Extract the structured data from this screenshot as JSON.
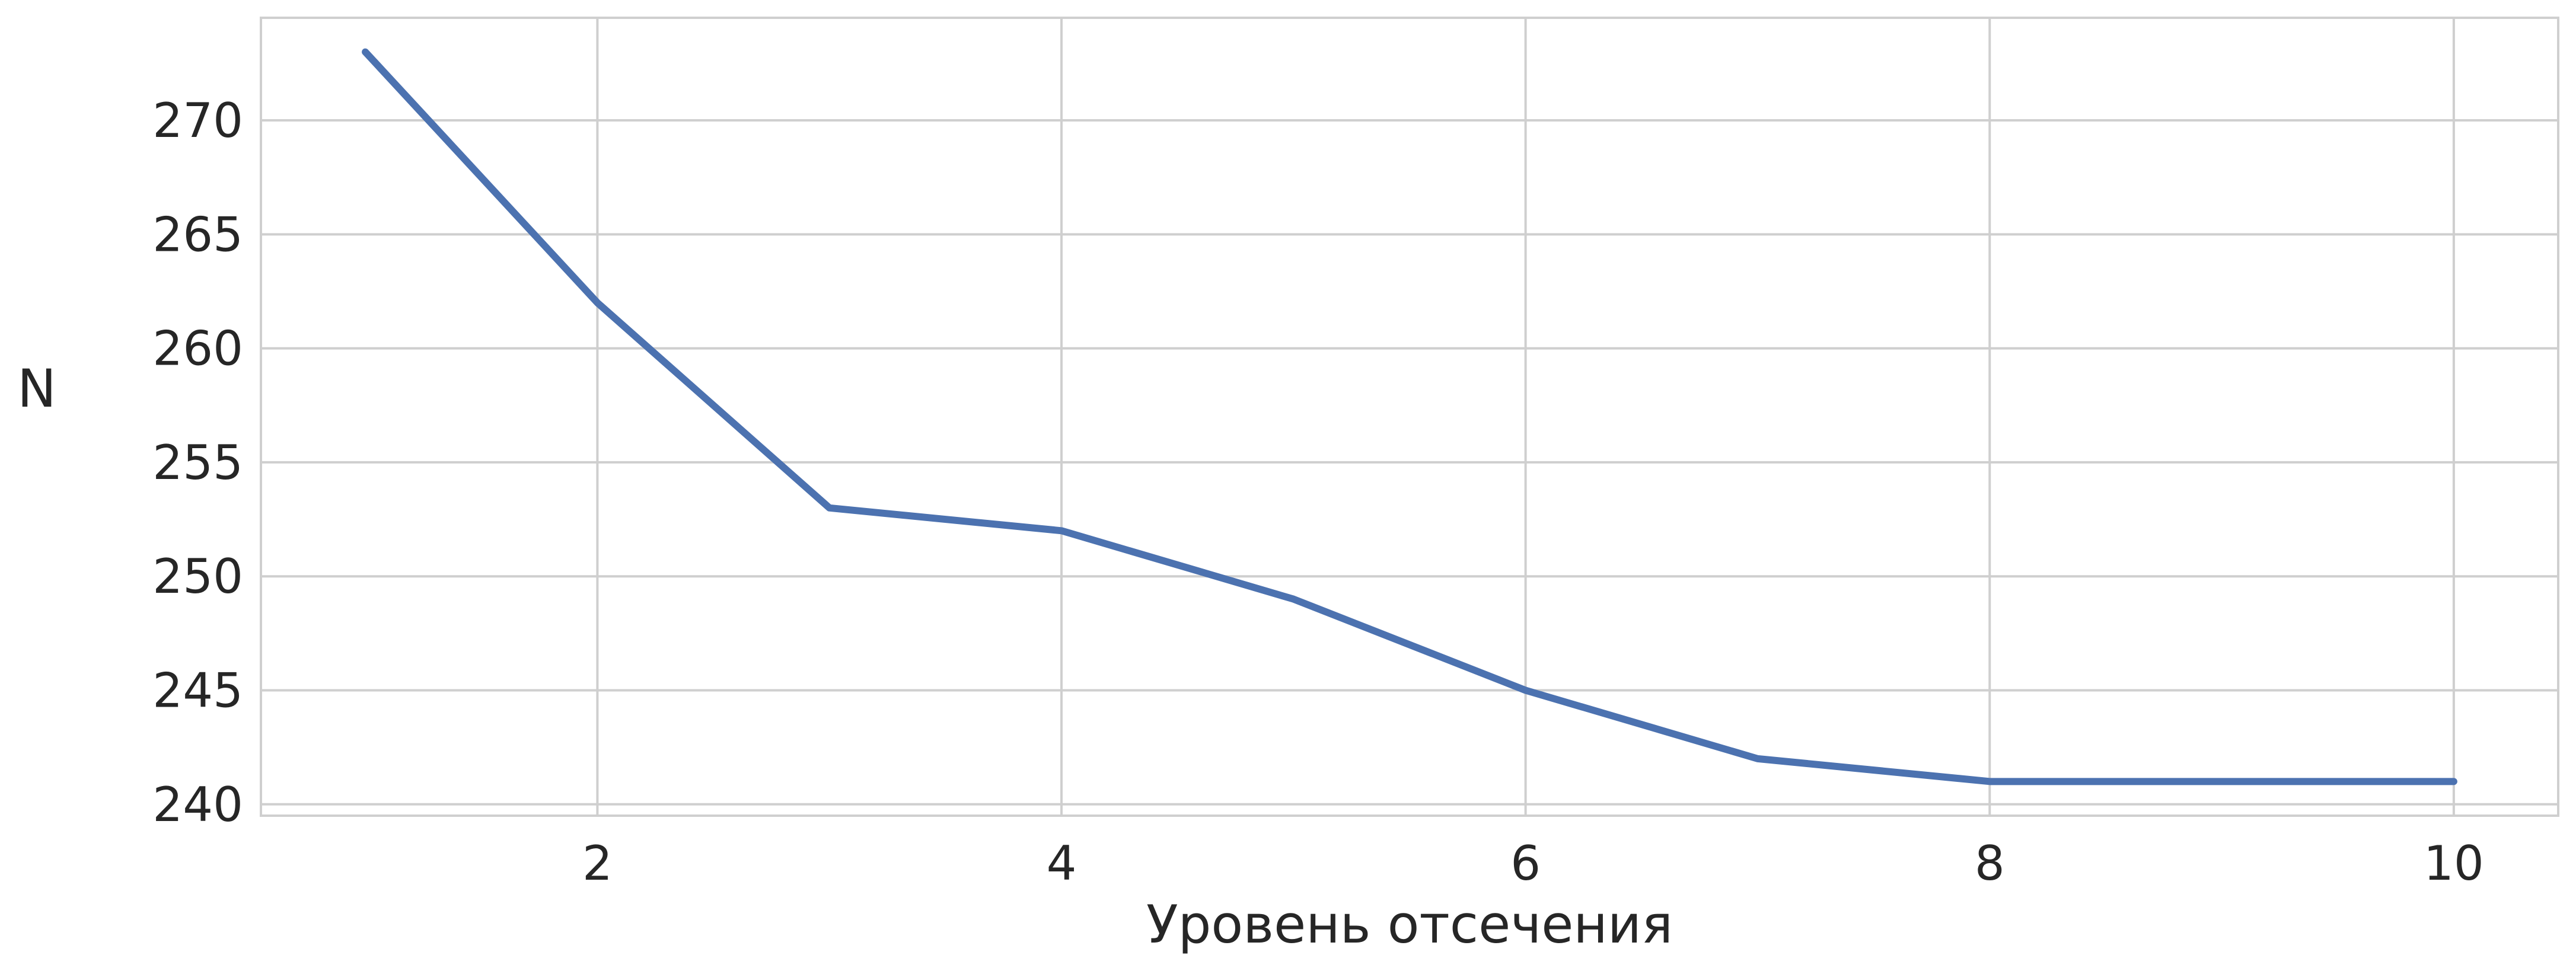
{
  "chart_data": {
    "type": "line",
    "xlabel": "Уровень отсечения",
    "ylabel": "N",
    "xlim": [
      0.55,
      10.45
    ],
    "ylim": [
      239.5,
      274.5
    ],
    "x_ticks": [
      2,
      4,
      6,
      8,
      10
    ],
    "y_ticks": [
      240,
      245,
      250,
      255,
      260,
      265,
      270
    ],
    "grid": true,
    "series": [
      {
        "color": "#4c72b0",
        "x": [
          1,
          2,
          3,
          4,
          5,
          6,
          7,
          8,
          9,
          10
        ],
        "y": [
          273,
          262,
          253,
          252,
          249,
          245,
          242,
          241,
          241,
          241
        ]
      }
    ]
  }
}
